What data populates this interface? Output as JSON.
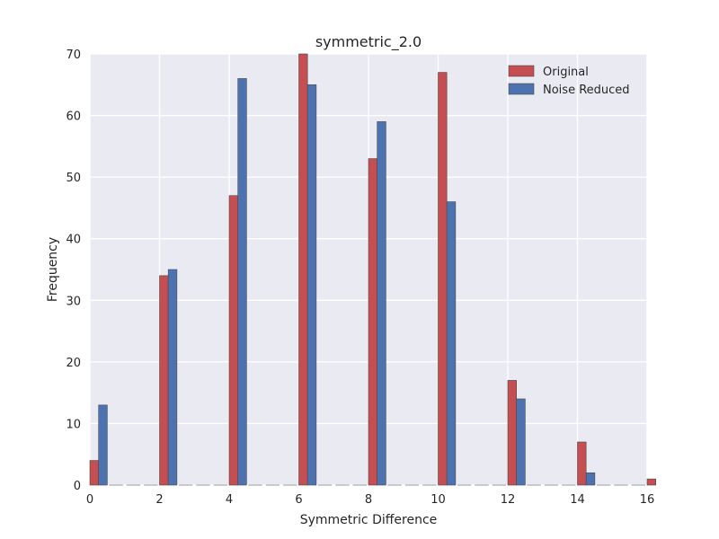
{
  "chart_data": {
    "type": "bar",
    "title": "symmetric_2.0",
    "xlabel": "Symmetric Difference",
    "ylabel": "Frequency",
    "xlim": [
      0,
      16
    ],
    "ylim": [
      0,
      70
    ],
    "xticks": [
      "0",
      "2",
      "4",
      "6",
      "8",
      "10",
      "12",
      "14",
      "16"
    ],
    "yticks": [
      "0",
      "10",
      "20",
      "30",
      "40",
      "50",
      "60",
      "70"
    ],
    "grid": true,
    "legend_position": "top-right",
    "background_color": "#EAEAF2",
    "grid_color": "#FFFFFF",
    "series": [
      {
        "name": "Original",
        "color": "#C44E52",
        "bins": [
          {
            "x": 0,
            "value": 4
          },
          {
            "x": 2,
            "value": 34
          },
          {
            "x": 4,
            "value": 47
          },
          {
            "x": 6,
            "value": 70
          },
          {
            "x": 8,
            "value": 53
          },
          {
            "x": 10,
            "value": 67
          },
          {
            "x": 12,
            "value": 17
          },
          {
            "x": 14,
            "value": 7
          },
          {
            "x": 16,
            "value": 1
          }
        ]
      },
      {
        "name": "Noise Reduced",
        "color": "#4C72B0",
        "bins": [
          {
            "x": 0,
            "value": 13
          },
          {
            "x": 2,
            "value": 35
          },
          {
            "x": 4,
            "value": 66
          },
          {
            "x": 6,
            "value": 65
          },
          {
            "x": 8,
            "value": 59
          },
          {
            "x": 10,
            "value": 46
          },
          {
            "x": 12,
            "value": 14
          },
          {
            "x": 14,
            "value": 2
          }
        ]
      }
    ]
  }
}
